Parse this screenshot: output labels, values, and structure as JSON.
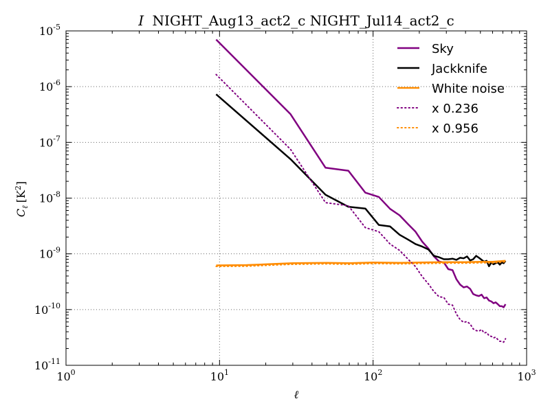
{
  "chart_data": {
    "type": "line",
    "title_prefix": "I",
    "title": "NIGHT_Aug13_act2_c NIGHT_Jul14_act2_c",
    "xlabel": "ℓ",
    "ylabel": "C_ℓ [K²]",
    "xscale": "log",
    "yscale": "log",
    "xlim": [
      1,
      1000
    ],
    "ylim": [
      1e-11,
      1e-05
    ],
    "grid": true,
    "legend_position": "top-right",
    "x_ticks": [
      {
        "base": "10",
        "exp": "0"
      },
      {
        "base": "10",
        "exp": "1"
      },
      {
        "base": "10",
        "exp": "2"
      },
      {
        "base": "10",
        "exp": "3"
      }
    ],
    "y_ticks": [
      {
        "base": "10",
        "exp": "-11"
      },
      {
        "base": "10",
        "exp": "-10"
      },
      {
        "base": "10",
        "exp": "-9"
      },
      {
        "base": "10",
        "exp": "-8"
      },
      {
        "base": "10",
        "exp": "-7"
      },
      {
        "base": "10",
        "exp": "-6"
      },
      {
        "base": "10",
        "exp": "-5"
      }
    ],
    "series": [
      {
        "name": "Sky",
        "color": "#800080",
        "style": "solid",
        "width": 2.5,
        "x": [
          9.5,
          29,
          49,
          69,
          89,
          109,
          129,
          149,
          169,
          189,
          209,
          229,
          249,
          269,
          289,
          309,
          329,
          349,
          369,
          389,
          409,
          429,
          449,
          469,
          489,
          509,
          529,
          549,
          569,
          589,
          609,
          629,
          649,
          669,
          689,
          709,
          729
        ],
        "y": [
          7e-06,
          3.2e-07,
          3.5e-08,
          3.1e-08,
          1.25e-08,
          1.05e-08,
          6.4e-09,
          4.9e-09,
          3.4e-09,
          2.5e-09,
          1.65e-09,
          1.25e-09,
          9e-10,
          7.3e-10,
          7e-10,
          5.3e-10,
          5.1e-10,
          3.5e-10,
          2.8e-10,
          2.5e-10,
          2.6e-10,
          2.35e-10,
          1.9e-10,
          1.8e-10,
          1.75e-10,
          1.85e-10,
          1.6e-10,
          1.65e-10,
          1.45e-10,
          1.4e-10,
          1.3e-10,
          1.35e-10,
          1.25e-10,
          1.15e-10,
          1.15e-10,
          1.1e-10,
          1.25e-10
        ]
      },
      {
        "name": "Jackknife",
        "color": "#000000",
        "style": "solid",
        "width": 2.5,
        "x": [
          9.5,
          29,
          49,
          69,
          89,
          109,
          129,
          149,
          169,
          189,
          209,
          229,
          249,
          269,
          289,
          309,
          329,
          349,
          369,
          389,
          409,
          429,
          449,
          469,
          489,
          509,
          529,
          549,
          569,
          589,
          609,
          629,
          649,
          669,
          689,
          709,
          729
        ],
        "y": [
          7.3e-07,
          5e-08,
          1.15e-08,
          7e-09,
          6.5e-09,
          3.3e-09,
          3.1e-09,
          2.2e-09,
          1.8e-09,
          1.5e-09,
          1.35e-09,
          1.2e-09,
          9.2e-10,
          8.7e-10,
          8e-10,
          8e-10,
          8.2e-10,
          7.8e-10,
          8.5e-10,
          8.3e-10,
          9e-10,
          7.6e-10,
          8e-10,
          9.2e-10,
          8.5e-10,
          7.8e-10,
          7.2e-10,
          7.5e-10,
          6e-10,
          7e-10,
          6.5e-10,
          6.8e-10,
          7e-10,
          6.4e-10,
          7e-10,
          6.8e-10,
          7.5e-10
        ]
      },
      {
        "name": "White noise",
        "color": "#ff8c00",
        "style": "solid",
        "width": 2.5,
        "x": [
          9.5,
          15,
          20,
          30,
          50,
          70,
          100,
          150,
          200,
          300,
          400,
          500,
          600,
          729
        ],
        "y": [
          6.2e-10,
          6.3e-10,
          6.5e-10,
          6.8e-10,
          6.9e-10,
          6.8e-10,
          7e-10,
          6.9e-10,
          7e-10,
          7.1e-10,
          7.1e-10,
          7.2e-10,
          7.2e-10,
          7.5e-10
        ]
      },
      {
        "name": "x 0.236",
        "color": "#800080",
        "style": "dotted",
        "width": 2,
        "x": [
          9.5,
          29,
          49,
          69,
          89,
          109,
          129,
          149,
          169,
          189,
          209,
          229,
          249,
          269,
          289,
          309,
          329,
          349,
          369,
          389,
          409,
          429,
          449,
          469,
          489,
          509,
          529,
          549,
          569,
          589,
          609,
          629,
          649,
          669,
          689,
          709,
          729
        ],
        "y": [
          1.65e-06,
          7.5e-08,
          8.3e-09,
          7.3e-09,
          2.95e-09,
          2.5e-09,
          1.5e-09,
          1.15e-09,
          8e-10,
          5.9e-10,
          3.9e-10,
          2.9e-10,
          2.1e-10,
          1.7e-10,
          1.65e-10,
          1.25e-10,
          1.2e-10,
          8.3e-11,
          6.6e-11,
          5.9e-11,
          6.1e-11,
          5.5e-11,
          4.5e-11,
          4.2e-11,
          4.1e-11,
          4.4e-11,
          3.8e-11,
          3.9e-11,
          3.4e-11,
          3.3e-11,
          3.1e-11,
          3.2e-11,
          2.9e-11,
          2.7e-11,
          2.7e-11,
          2.6e-11,
          3e-11
        ]
      },
      {
        "name": "x 0.956",
        "color": "#ff8c00",
        "style": "dotted",
        "width": 2,
        "x": [
          9.5,
          15,
          20,
          30,
          50,
          70,
          100,
          150,
          200,
          300,
          400,
          500,
          600,
          729
        ],
        "y": [
          5.95e-10,
          6e-10,
          6.2e-10,
          6.5e-10,
          6.6e-10,
          6.5e-10,
          6.7e-10,
          6.6e-10,
          6.7e-10,
          6.8e-10,
          6.8e-10,
          6.9e-10,
          6.9e-10,
          7.2e-10
        ]
      }
    ]
  }
}
